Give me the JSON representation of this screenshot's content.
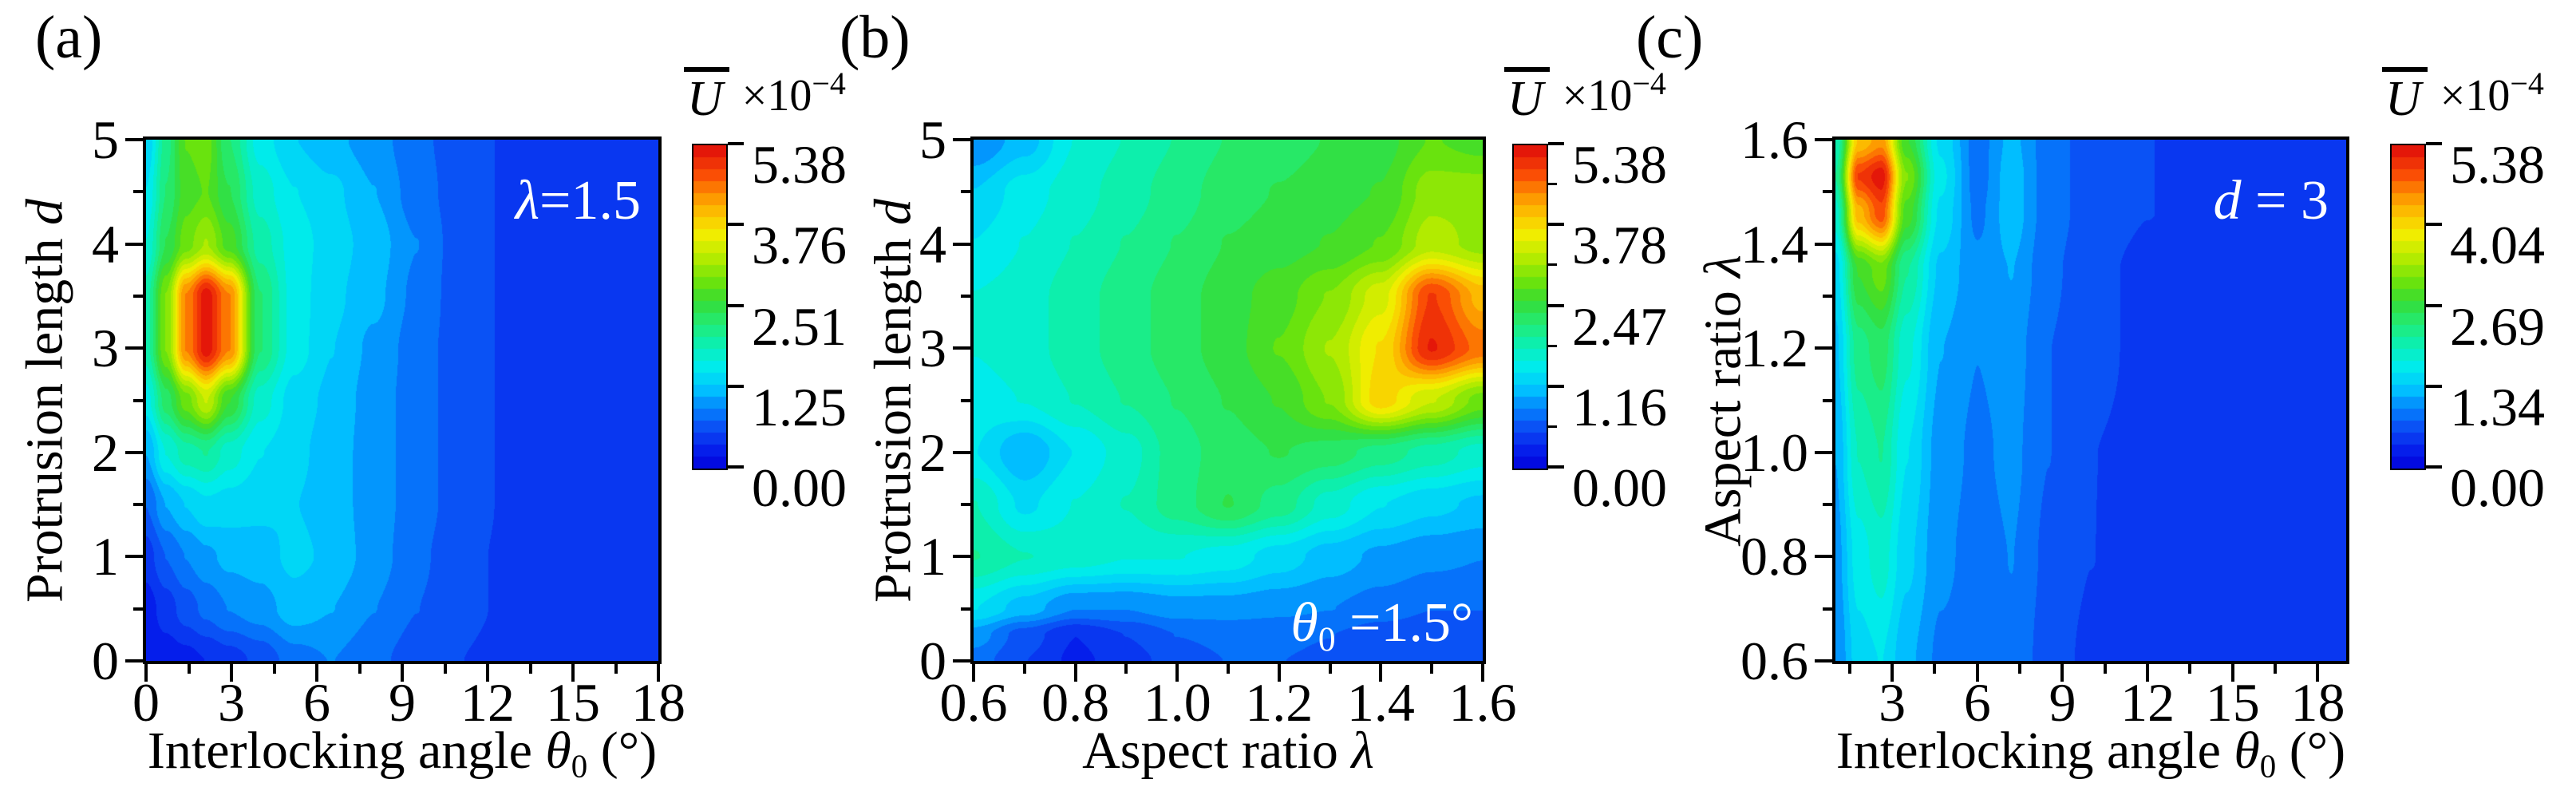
{
  "figure": {
    "background": "#ffffff",
    "text_color": "#000000",
    "annotation_color": "#ffffff"
  },
  "colormap": {
    "vmax": 5.38,
    "levels": 27,
    "stops": [
      [
        0.0,
        2,
        2,
        220
      ],
      [
        0.055,
        5,
        30,
        235
      ],
      [
        0.115,
        12,
        70,
        243
      ],
      [
        0.18,
        5,
        125,
        252
      ],
      [
        0.25,
        0,
        200,
        255
      ],
      [
        0.315,
        0,
        235,
        235
      ],
      [
        0.38,
        10,
        240,
        180
      ],
      [
        0.45,
        35,
        235,
        115
      ],
      [
        0.52,
        55,
        220,
        50
      ],
      [
        0.58,
        110,
        228,
        10
      ],
      [
        0.65,
        180,
        235,
        0
      ],
      [
        0.72,
        240,
        238,
        0
      ],
      [
        0.78,
        252,
        200,
        0
      ],
      [
        0.845,
        253,
        145,
        0
      ],
      [
        0.91,
        250,
        75,
        5
      ],
      [
        1.0,
        222,
        10,
        10
      ]
    ]
  },
  "chart_data": [
    {
      "id": "a",
      "type": "heatmap",
      "panel_label": "(a)",
      "annotation": {
        "sym": "λ",
        "sub": "",
        "rest": "=1.5"
      },
      "xaxis": {
        "label_pre": "Interlocking angle ",
        "label_sym": "θ",
        "label_sub": "0",
        "label_post": " (°)",
        "range": [
          0,
          18
        ],
        "major_ticks": [
          0,
          3,
          6,
          9,
          12,
          15,
          18
        ],
        "major_labels": [
          "0",
          "3",
          "6",
          "9",
          "12",
          "15",
          "18"
        ],
        "minor_ticks": [
          1.5,
          4.5,
          7.5,
          10.5,
          13.5,
          16.5
        ]
      },
      "yaxis": {
        "label_pre": "Protrusion length ",
        "label_sym": "d",
        "label_sub": "",
        "label_post": "",
        "range": [
          0,
          5
        ],
        "major_ticks": [
          0,
          1,
          2,
          3,
          4,
          5
        ],
        "major_labels": [
          "0",
          "1",
          "2",
          "3",
          "4",
          "5"
        ],
        "minor_ticks": [
          0.5,
          1.5,
          2.5,
          3.5,
          4.5
        ]
      },
      "colorbar": {
        "title_sym": "U",
        "title_mult": "×10",
        "title_exp": "−4",
        "tick_labels": [
          "5.38",
          "3.76",
          "2.51",
          "1.25",
          "0.00"
        ],
        "minor": false
      },
      "grid": {
        "x": [
          0,
          0.7,
          1.4,
          2.1,
          2.9,
          4,
          5.2,
          6.5,
          8,
          9.5,
          11,
          13,
          15.5,
          18
        ],
        "y": [
          0,
          0.5,
          1,
          1.5,
          2,
          2.5,
          3,
          3.5,
          4,
          4.5,
          5
        ],
        "values": [
          [
            0.25,
            0.28,
            0.32,
            0.4,
            0.5,
            0.65,
            0.9,
            1.0,
            0.85,
            0.7,
            0.6,
            0.5,
            0.5,
            0.5
          ],
          [
            0.3,
            0.5,
            0.7,
            0.85,
            1.0,
            1.1,
            1.3,
            1.2,
            1.0,
            0.8,
            0.65,
            0.55,
            0.5,
            0.5
          ],
          [
            0.5,
            0.8,
            1.0,
            1.15,
            1.25,
            1.3,
            1.45,
            1.35,
            1.1,
            0.85,
            0.65,
            0.55,
            0.5,
            0.5
          ],
          [
            0.8,
            1.2,
            1.4,
            1.55,
            1.5,
            1.45,
            1.4,
            1.3,
            1.1,
            0.9,
            0.7,
            0.55,
            0.5,
            0.5
          ],
          [
            1.2,
            1.8,
            2.1,
            2.2,
            1.9,
            1.6,
            1.45,
            1.3,
            1.1,
            0.9,
            0.7,
            0.55,
            0.5,
            0.5
          ],
          [
            1.7,
            2.5,
            3.1,
            3.6,
            2.8,
            1.9,
            1.5,
            1.35,
            1.1,
            0.9,
            0.7,
            0.55,
            0.5,
            0.5
          ],
          [
            2.1,
            3.2,
            4.6,
            5.3,
            4.6,
            2.4,
            1.7,
            1.4,
            1.15,
            0.9,
            0.7,
            0.55,
            0.5,
            0.5
          ],
          [
            2.1,
            3.2,
            4.6,
            5.3,
            4.6,
            2.4,
            1.7,
            1.45,
            1.25,
            0.95,
            0.7,
            0.55,
            0.5,
            0.5
          ],
          [
            1.8,
            2.6,
            3.1,
            3.4,
            2.9,
            2.1,
            1.7,
            1.5,
            1.3,
            1.0,
            0.7,
            0.55,
            0.5,
            0.5
          ],
          [
            1.6,
            2.4,
            2.9,
            3.0,
            2.6,
            1.9,
            1.6,
            1.45,
            1.2,
            0.9,
            0.7,
            0.55,
            0.5,
            0.5
          ],
          [
            1.4,
            2.3,
            3.0,
            3.1,
            2.4,
            1.7,
            1.4,
            1.25,
            1.1,
            0.85,
            0.7,
            0.55,
            0.5,
            0.5
          ]
        ]
      }
    },
    {
      "id": "b",
      "type": "heatmap",
      "panel_label": "(b)",
      "annotation": {
        "sym": "θ",
        "sub": "0",
        "rest": " =1.5°"
      },
      "xaxis": {
        "label_pre": "Aspect ratio ",
        "label_sym": "λ",
        "label_sub": "",
        "label_post": "",
        "range": [
          0.6,
          1.6
        ],
        "major_ticks": [
          0.6,
          0.8,
          1.0,
          1.2,
          1.4,
          1.6
        ],
        "major_labels": [
          "0.6",
          "0.8",
          "1.0",
          "1.2",
          "1.4",
          "1.6"
        ],
        "minor_ticks": [
          0.7,
          0.9,
          1.1,
          1.3,
          1.5
        ]
      },
      "yaxis": {
        "label_pre": "Protrusion length ",
        "label_sym": "d",
        "label_sub": "",
        "label_post": "",
        "range": [
          0,
          5
        ],
        "major_ticks": [
          0,
          1,
          2,
          3,
          4,
          5
        ],
        "major_labels": [
          "0",
          "1",
          "2",
          "3",
          "4",
          "5"
        ],
        "minor_ticks": [
          0.5,
          1.5,
          2.5,
          3.5,
          4.5
        ]
      },
      "colorbar": {
        "title_sym": "U",
        "title_mult": "×10",
        "title_exp": "−4",
        "tick_labels": [
          "5.38",
          "3.78",
          "2.47",
          "1.16",
          "0.00"
        ],
        "minor": true
      },
      "grid": {
        "x": [
          0.6,
          0.7,
          0.8,
          0.9,
          1.0,
          1.1,
          1.2,
          1.3,
          1.4,
          1.5,
          1.6
        ],
        "y": [
          0,
          0.25,
          0.5,
          1,
          1.5,
          2,
          2.5,
          3,
          3.5,
          4,
          4.5,
          5
        ],
        "values": [
          [
            0.9,
            0.6,
            0.35,
            0.5,
            0.7,
            0.8,
            0.8,
            0.75,
            0.7,
            0.65,
            0.6
          ],
          [
            1.1,
            0.7,
            0.4,
            0.6,
            0.8,
            0.85,
            0.85,
            0.8,
            0.7,
            0.65,
            0.6
          ],
          [
            1.6,
            1.3,
            1.0,
            1.0,
            1.1,
            1.1,
            1.05,
            1.0,
            0.9,
            0.8,
            0.8
          ],
          [
            2.2,
            2.0,
            1.9,
            1.8,
            1.8,
            1.7,
            1.5,
            1.3,
            1.15,
            1.05,
            1.0
          ],
          [
            2.0,
            1.55,
            1.8,
            2.0,
            2.3,
            2.6,
            2.3,
            1.9,
            1.6,
            1.45,
            1.35
          ],
          [
            1.6,
            1.2,
            1.6,
            1.9,
            2.3,
            2.5,
            2.6,
            2.5,
            2.3,
            2.1,
            1.9
          ],
          [
            1.7,
            1.8,
            2.0,
            2.2,
            2.4,
            2.6,
            2.8,
            3.2,
            4.1,
            3.6,
            3.1
          ],
          [
            1.8,
            1.9,
            2.1,
            2.3,
            2.5,
            2.7,
            3.0,
            3.4,
            4.0,
            5.2,
            4.7
          ],
          [
            1.8,
            1.9,
            2.1,
            2.3,
            2.5,
            2.7,
            2.9,
            3.2,
            3.7,
            5.0,
            4.3
          ],
          [
            1.6,
            1.8,
            2.0,
            2.2,
            2.4,
            2.6,
            2.7,
            2.8,
            3.0,
            3.5,
            3.3
          ],
          [
            1.4,
            1.7,
            1.9,
            2.1,
            2.3,
            2.5,
            2.6,
            2.7,
            2.8,
            3.3,
            3.3
          ],
          [
            1.0,
            1.3,
            1.8,
            2.0,
            2.2,
            2.4,
            2.5,
            2.6,
            2.7,
            3.0,
            2.9
          ]
        ]
      }
    },
    {
      "id": "c",
      "type": "heatmap",
      "panel_label": "(c)",
      "annotation": {
        "sym": "d",
        "sub": "",
        "rest": " = 3"
      },
      "xaxis": {
        "label_pre": "Interlocking angle ",
        "label_sym": "θ",
        "label_sub": "0",
        "label_post": " (°)",
        "range": [
          1,
          19
        ],
        "major_ticks": [
          3,
          6,
          9,
          12,
          15,
          18
        ],
        "major_labels": [
          "3",
          "6",
          "9",
          "12",
          "15",
          "18"
        ],
        "minor_ticks": [
          1.5,
          4.5,
          7.5,
          10.5,
          13.5,
          16.5
        ]
      },
      "yaxis": {
        "label_pre": "Aspect ratio ",
        "label_sym": "λ",
        "label_sub": "",
        "label_post": "",
        "range": [
          0.6,
          1.6
        ],
        "major_ticks": [
          0.6,
          0.8,
          1.0,
          1.2,
          1.4,
          1.6
        ],
        "major_labels": [
          "0.6",
          "0.8",
          "1.0",
          "1.2",
          "1.4",
          "1.6"
        ],
        "minor_ticks": [
          0.7,
          0.9,
          1.1,
          1.3,
          1.5
        ]
      },
      "colorbar": {
        "title_sym": "U",
        "title_mult": "×10",
        "title_exp": "−4",
        "tick_labels": [
          "5.38",
          "4.04",
          "2.69",
          "1.34",
          "0.00"
        ],
        "minor": false
      },
      "grid": {
        "x": [
          1,
          1.8,
          2.6,
          3.5,
          4.7,
          6,
          7.2,
          8.5,
          10,
          12,
          15,
          19
        ],
        "y": [
          0.6,
          0.8,
          1.0,
          1.2,
          1.35,
          1.46,
          1.53,
          1.6
        ],
        "values": [
          [
            1.0,
            1.5,
            1.6,
            1.25,
            0.95,
            0.85,
            0.95,
            0.7,
            0.55,
            0.5,
            0.45,
            0.45
          ],
          [
            1.1,
            1.7,
            1.9,
            1.45,
            1.05,
            0.9,
            1.0,
            0.75,
            0.6,
            0.5,
            0.45,
            0.5
          ],
          [
            1.2,
            2.0,
            2.2,
            1.6,
            1.1,
            0.95,
            1.05,
            0.8,
            0.6,
            0.55,
            0.5,
            0.5
          ],
          [
            1.35,
            2.3,
            2.5,
            1.85,
            1.2,
            1.0,
            1.1,
            0.8,
            0.65,
            0.55,
            0.5,
            0.5
          ],
          [
            1.5,
            2.8,
            3.1,
            2.2,
            1.35,
            1.05,
            1.2,
            0.85,
            0.65,
            0.55,
            0.5,
            0.5
          ],
          [
            1.9,
            4.3,
            4.9,
            2.9,
            1.55,
            0.95,
            1.3,
            0.9,
            0.7,
            0.6,
            0.5,
            0.5
          ],
          [
            2.2,
            5.0,
            5.3,
            3.2,
            1.65,
            0.9,
            1.3,
            0.9,
            0.7,
            0.6,
            0.5,
            0.5
          ],
          [
            2.0,
            4.2,
            4.5,
            2.8,
            1.55,
            0.9,
            1.25,
            0.9,
            0.7,
            0.6,
            0.5,
            0.5
          ]
        ]
      }
    }
  ]
}
